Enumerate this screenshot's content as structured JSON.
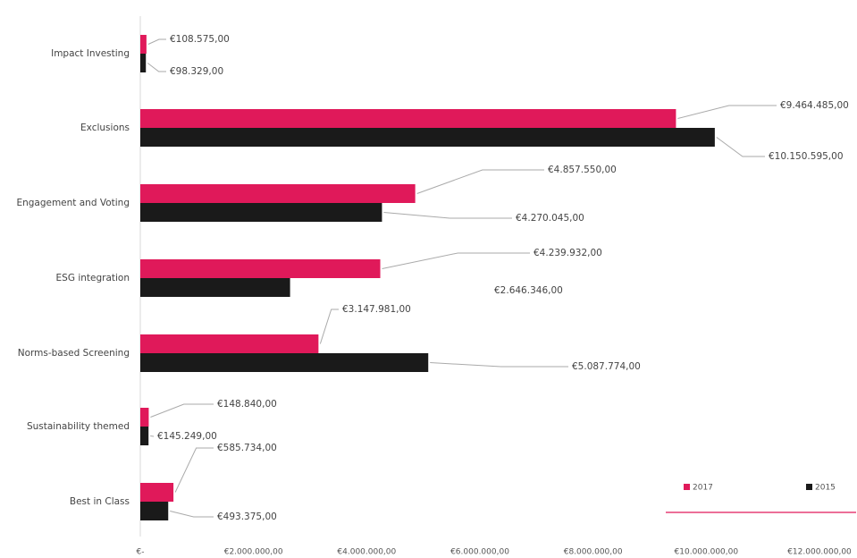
{
  "chart_data": {
    "type": "barh",
    "categories": [
      "Impact Investing",
      "Exclusions",
      "Engagement and Voting",
      "ESG integration",
      "Norms-based Screening",
      "Sustainability themed",
      "Best in Class"
    ],
    "series": [
      {
        "name": "2017",
        "color": "#e0195a",
        "values": [
          108575,
          9464485,
          4857550,
          4239932,
          3147981,
          148840,
          585734
        ],
        "value_labels": [
          "€108.575,00",
          "€9.464.485,00",
          "€4.857.550,00",
          "€4.239.932,00",
          "€3.147.981,00",
          "€148.840,00",
          "€585.734,00"
        ]
      },
      {
        "name": "2015",
        "color": "#1a1a1a",
        "values": [
          98329,
          10150595,
          4270045,
          2646346,
          5087774,
          145249,
          493375
        ],
        "value_labels": [
          "€98.329,00",
          "€10.150.595,00",
          "€4.270.045,00",
          "€2.646.346,00",
          "€5.087.774,00",
          "€145.249,00",
          "€493.375,00"
        ]
      }
    ],
    "xlim": [
      0,
      12000000
    ],
    "xticks": [
      {
        "value": 0,
        "label": "€-"
      },
      {
        "value": 2000000,
        "label": "€2.000.000,00"
      },
      {
        "value": 4000000,
        "label": "€4.000.000,00"
      },
      {
        "value": 6000000,
        "label": "€6.000.000,00"
      },
      {
        "value": 8000000,
        "label": "€8.000.000,00"
      },
      {
        "value": 10000000,
        "label": "€10.000.000,00"
      },
      {
        "value": 12000000,
        "label": "€12.000.000,00"
      }
    ],
    "legend": "bottom-right"
  }
}
